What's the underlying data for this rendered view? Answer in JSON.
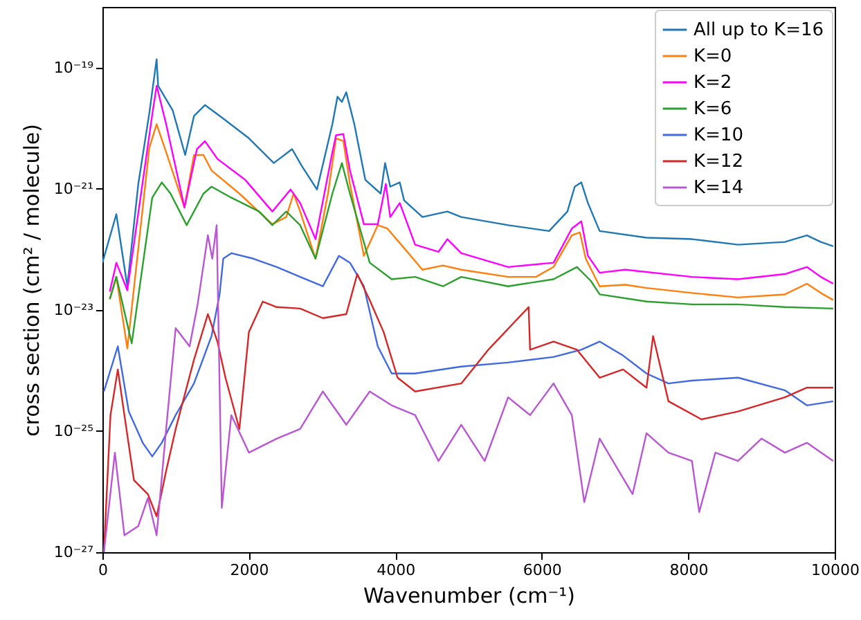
{
  "chart_data": {
    "type": "line",
    "xlabel": "Wavenumber (cm⁻¹)",
    "ylabel": "cross section (cm² / molecule)",
    "log": "y",
    "xlim": [
      0,
      10000
    ],
    "xticks": [
      0,
      2000,
      4000,
      6000,
      8000,
      10000
    ],
    "ylim": [
      1e-27,
      1e-18
    ],
    "yticks": [
      {
        "value": 1e-27,
        "label": "10⁻²⁷"
      },
      {
        "value": 1e-25,
        "label": "10⁻²⁵"
      },
      {
        "value": 1e-23,
        "label": "10⁻²³"
      },
      {
        "value": 1e-21,
        "label": "10⁻²¹"
      },
      {
        "value": 1e-19,
        "label": "10⁻¹⁹"
      }
    ],
    "grid": false,
    "legend": "top right",
    "series": [
      {
        "name": "All up to K=16",
        "color": "#1f77b4",
        "x": [
          0,
          190,
          340,
          490,
          640,
          740,
          760,
          960,
          1130,
          1250,
          1400,
          1630,
          2000,
          2340,
          2590,
          2720,
          2930,
          3140,
          3210,
          3270,
          3330,
          3440,
          3590,
          3800,
          3860,
          3930,
          4060,
          4120,
          4370,
          4710,
          4900,
          5540,
          6100,
          6350,
          6450,
          6540,
          6630,
          6790,
          7430,
          8050,
          8680,
          9320,
          9620,
          9810,
          9980
        ],
        "values": [
          6e-23,
          3.8e-22,
          2.45e-23,
          1.2e-21,
          1.76e-20,
          1.37e-19,
          5e-20,
          1.95e-20,
          3.6e-21,
          1.58e-20,
          2.4e-20,
          1.5e-20,
          6.8e-21,
          2.65e-21,
          4.5e-21,
          2.4e-21,
          9.7e-22,
          1.16e-20,
          3.3e-20,
          2.7e-20,
          3.9e-20,
          1.16e-20,
          1.4e-21,
          8.3e-22,
          2.65e-21,
          1.08e-21,
          1.27e-21,
          6.4e-22,
          3.4e-22,
          4.2e-22,
          3.4e-22,
          2.5e-22,
          2e-22,
          4.2e-22,
          1.08e-21,
          1.27e-21,
          5.8e-22,
          2e-22,
          1.55e-22,
          1.47e-22,
          1.19e-22,
          1.32e-22,
          1.7e-22,
          1.32e-22,
          1.12e-22
        ]
      },
      {
        "name": "K=0",
        "color": "#ff7f0e",
        "x": [
          100,
          190,
          340,
          640,
          740,
          870,
          1120,
          1250,
          1380,
          1490,
          1870,
          2320,
          2510,
          2610,
          2700,
          2910,
          3080,
          3190,
          3290,
          3380,
          3570,
          3760,
          3890,
          4080,
          4370,
          4650,
          4900,
          5540,
          5920,
          6160,
          6410,
          6520,
          6600,
          6790,
          7140,
          7430,
          8050,
          8680,
          9320,
          9620,
          9810,
          9980
        ],
        "values": [
          1.5e-23,
          3.5e-23,
          2.3e-24,
          4.7e-21,
          1.16e-20,
          4e-21,
          4.9e-22,
          3.6e-21,
          3.6e-21,
          2e-21,
          8.3e-22,
          2.6e-22,
          3.4e-22,
          8.3e-22,
          4.2e-22,
          7e-23,
          8.3e-22,
          6.8e-21,
          6.1e-21,
          1.2e-21,
          7.8e-23,
          2.5e-22,
          2.2e-22,
          1.19e-22,
          4.6e-23,
          5.4e-23,
          4.6e-23,
          3.5e-23,
          3.5e-23,
          5.1e-23,
          1.7e-22,
          1.9e-22,
          7e-23,
          2.45e-23,
          2.6e-23,
          2.3e-23,
          1.9e-23,
          1.6e-23,
          1.8e-23,
          2.7e-23,
          1.9e-23,
          1.45e-23
        ]
      },
      {
        "name": "K=2",
        "color": "#ff00ff",
        "x": [
          100,
          190,
          340,
          680,
          740,
          870,
          1120,
          1290,
          1400,
          1570,
          1950,
          2320,
          2570,
          2700,
          2910,
          3140,
          3190,
          3290,
          3380,
          3570,
          3760,
          3870,
          3930,
          4060,
          4270,
          4590,
          4710,
          4900,
          5540,
          6160,
          6410,
          6540,
          6630,
          6790,
          7140,
          8050,
          8680,
          9320,
          9620,
          9810,
          9980
        ],
        "values": [
          2e-23,
          6e-23,
          2.1e-23,
          1.67e-20,
          5e-20,
          1.16e-20,
          4.9e-22,
          4.5e-21,
          6.1e-21,
          3.1e-21,
          1.4e-21,
          4.2e-22,
          9.7e-22,
          5.8e-22,
          1.47e-22,
          4e-21,
          7.6e-21,
          8e-21,
          2e-21,
          2.6e-22,
          2.6e-22,
          1.2e-21,
          3.4e-22,
          5.8e-22,
          1.19e-22,
          9.1e-23,
          1.47e-22,
          8.6e-23,
          5.1e-23,
          6e-23,
          2.2e-22,
          2.9e-22,
          7.8e-23,
          4.1e-23,
          4.6e-23,
          3.5e-23,
          3.2e-23,
          3.9e-23,
          5.1e-23,
          3.5e-23,
          2.7e-23
        ]
      },
      {
        "name": "K=6",
        "color": "#2ca02c",
        "x": [
          100,
          190,
          400,
          680,
          810,
          930,
          1150,
          1380,
          1490,
          1760,
          2140,
          2320,
          2510,
          2700,
          2910,
          3140,
          3270,
          3380,
          3650,
          3950,
          4270,
          4650,
          4900,
          5540,
          6160,
          6480,
          6670,
          6790,
          7430,
          8050,
          8680,
          9320,
          9980
        ],
        "values": [
          1.5e-23,
          3.5e-23,
          2.8e-24,
          7.1e-22,
          1.27e-21,
          8.3e-22,
          2.5e-22,
          8.3e-22,
          1.08e-21,
          7.1e-22,
          4.2e-22,
          2.5e-22,
          4.2e-22,
          2.5e-22,
          7e-23,
          8.3e-22,
          2.65e-21,
          8.3e-22,
          6e-23,
          3.2e-23,
          3.5e-23,
          2.45e-23,
          3.5e-23,
          2.45e-23,
          3.2e-23,
          5.1e-23,
          3e-23,
          1.8e-23,
          1.37e-23,
          1.23e-23,
          1.23e-23,
          1.11e-23,
          1.05e-23
        ]
      },
      {
        "name": "K=10",
        "color": "#4169e1",
        "x": [
          20,
          210,
          360,
          550,
          680,
          810,
          1000,
          1250,
          1490,
          1600,
          1650,
          1760,
          2060,
          2380,
          2700,
          3010,
          3230,
          3380,
          3570,
          3760,
          3950,
          4270,
          4900,
          5540,
          6160,
          6540,
          6790,
          7110,
          7430,
          7730,
          8050,
          8680,
          9320,
          9620,
          9980
        ],
        "values": [
          4.5e-25,
          2.5e-24,
          2.1e-25,
          6.4e-26,
          3.8e-26,
          6.4e-26,
          1.83e-25,
          6.1e-25,
          3.7e-24,
          1.8e-23,
          7e-23,
          8.6e-23,
          7e-23,
          5.1e-23,
          3.5e-23,
          2.45e-23,
          7.8e-23,
          6e-23,
          2.45e-23,
          2.5e-24,
          8.9e-25,
          8.9e-25,
          1.16e-24,
          1.35e-24,
          1.67e-24,
          2.2e-24,
          3e-24,
          1.76e-24,
          8.9e-25,
          6.1e-25,
          6.8e-25,
          7.6e-25,
          4.7e-25,
          2.65e-25,
          3.1e-25
        ]
      },
      {
        "name": "K=12",
        "color": "#d62728",
        "x": [
          20,
          110,
          210,
          300,
          430,
          620,
          740,
          870,
          1000,
          1250,
          1440,
          1570,
          1680,
          1870,
          2000,
          2190,
          2380,
          2700,
          3010,
          3330,
          3480,
          3650,
          3840,
          4030,
          4270,
          4900,
          5270,
          5820,
          5840,
          6160,
          6480,
          6790,
          7110,
          7430,
          7520,
          7730,
          8180,
          8680,
          9320,
          9620,
          9980
        ],
        "values": [
          1e-27,
          1.83e-25,
          1.04e-24,
          1.83e-25,
          1.55e-26,
          9.1e-27,
          3.9e-27,
          2.2e-26,
          1.08e-25,
          1.5e-24,
          8.5e-24,
          3e-24,
          7.6e-25,
          1.08e-25,
          4.3e-24,
          1.37e-23,
          1.11e-23,
          1.05e-23,
          7.3e-24,
          8.5e-24,
          3.9e-23,
          1.45e-23,
          4.3e-24,
          7.6e-25,
          4.5e-25,
          6.1e-25,
          2.2e-24,
          1.11e-23,
          2.2e-24,
          3e-24,
          2.2e-24,
          7.6e-25,
          1.04e-24,
          5.2e-25,
          3.7e-24,
          3.1e-25,
          1.56e-25,
          2.1e-25,
          3.6e-25,
          5.2e-25,
          5.2e-25
        ]
      },
      {
        "name": "K=14",
        "color": "#ba55d3",
        "x": [
          20,
          170,
          300,
          490,
          620,
          740,
          870,
          1000,
          1190,
          1300,
          1440,
          1500,
          1560,
          1630,
          1760,
          2000,
          2380,
          2700,
          3010,
          3330,
          3650,
          3950,
          4270,
          4590,
          4900,
          5220,
          5540,
          5840,
          6160,
          6410,
          6580,
          6790,
          7240,
          7430,
          7730,
          8050,
          8150,
          8370,
          8680,
          9000,
          9320,
          9620,
          9980
        ],
        "values": [
          1e-27,
          4.4e-26,
          1.9e-27,
          2.7e-27,
          7.8e-27,
          1.9e-27,
          1.08e-25,
          5e-24,
          2.5e-24,
          1.23e-23,
          1.7e-22,
          7e-23,
          2.5e-22,
          5.4e-27,
          1.83e-25,
          4.4e-26,
          7.5e-26,
          1.08e-25,
          4.5e-25,
          1.27e-25,
          4.5e-25,
          2.65e-25,
          1.83e-25,
          3.2e-26,
          1.27e-25,
          3.2e-26,
          3.6e-25,
          1.83e-25,
          6.1e-25,
          1.83e-25,
          6.7e-27,
          7.5e-26,
          9.1e-27,
          9.2e-26,
          4.4e-26,
          3.2e-26,
          4.6e-27,
          4.4e-26,
          3.2e-26,
          7.5e-26,
          4.4e-26,
          6.4e-26,
          3.2e-26
        ]
      }
    ]
  }
}
